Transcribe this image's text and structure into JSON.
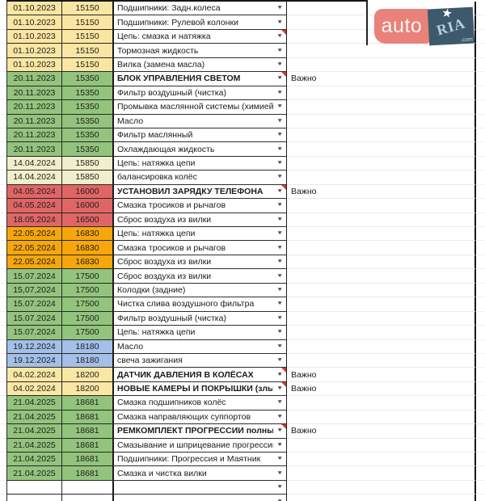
{
  "important_label": "Важно",
  "icons": {
    "dropdown_arrow": "▼",
    "star": "★"
  },
  "logo": {
    "auto_text": "auto",
    "ria_text": "RIA",
    "com_text": ".com",
    "auto_bg": "#e8827a",
    "ria_bg": "#3d5a6c"
  },
  "palette": {
    "yellow": "#fae6a2",
    "green": "#93c47d",
    "cream": "#f1efcb",
    "red": "#e06666",
    "orange": "#f7a70c",
    "blue": "#a4bfe8"
  },
  "empty_rows": 2,
  "rows": [
    {
      "date": "01.10.2023",
      "odometer": "15150",
      "desc": "Подшипники: Задн.колеса",
      "color": "#fae6a2",
      "bold": false,
      "comment": false,
      "important": false
    },
    {
      "date": "01.10.2023",
      "odometer": "15150",
      "desc": "Подшипники: Рулевой колонки",
      "color": "#fae6a2",
      "bold": false,
      "comment": false,
      "important": false
    },
    {
      "date": "01.10.2023",
      "odometer": "15150",
      "desc": "Цепь: смазка и натяжка",
      "color": "#fae6a2",
      "bold": false,
      "comment": true,
      "important": false
    },
    {
      "date": "01.10.2023",
      "odometer": "15150",
      "desc": "Тормозная жидкость",
      "color": "#fae6a2",
      "bold": false,
      "comment": false,
      "important": false
    },
    {
      "date": "01.10.2023",
      "odometer": "15150",
      "desc": "Вилка (замена масла)",
      "color": "#fae6a2",
      "bold": false,
      "comment": false,
      "important": false
    },
    {
      "date": "20.11.2023",
      "odometer": "15350",
      "desc": "БЛОК УПРАВЛЕНИЯ СВЕТОМ",
      "color": "#93c47d",
      "bold": true,
      "comment": true,
      "important": true
    },
    {
      "date": "20.11.2023",
      "odometer": "15350",
      "desc": "Фильтр воздушный (чистка)",
      "color": "#93c47d",
      "bold": false,
      "comment": false,
      "important": false
    },
    {
      "date": "20.11.2023",
      "odometer": "15350",
      "desc": "Промывка маслянной системы (химией)",
      "color": "#93c47d",
      "bold": false,
      "comment": false,
      "important": false
    },
    {
      "date": "20.11.2023",
      "odometer": "15350",
      "desc": "Масло",
      "color": "#93c47d",
      "bold": false,
      "comment": false,
      "important": false
    },
    {
      "date": "20.11.2023",
      "odometer": "15350",
      "desc": "Фильтр маслянный",
      "color": "#93c47d",
      "bold": false,
      "comment": false,
      "important": false
    },
    {
      "date": "20.11.2023",
      "odometer": "15350",
      "desc": "Охлаждающая жидкость",
      "color": "#93c47d",
      "bold": false,
      "comment": false,
      "important": false
    },
    {
      "date": "14.04.2024",
      "odometer": "15850",
      "desc": "Цепь: натяжка цепи",
      "color": "#f1efcb",
      "bold": false,
      "comment": false,
      "important": false
    },
    {
      "date": "14.04.2024",
      "odometer": "15850",
      "desc": "балансировка колёс",
      "color": "#f1efcb",
      "bold": false,
      "comment": false,
      "important": false
    },
    {
      "date": "04.05.2024",
      "odometer": "16000",
      "desc": "УСТАНОВИЛ ЗАРЯДКУ ТЕЛЕФОНА",
      "color": "#e06666",
      "bold": true,
      "comment": true,
      "important": true
    },
    {
      "date": "04.05.2024",
      "odometer": "16000",
      "desc": "Смазка тросиков и рычагов",
      "color": "#e06666",
      "bold": false,
      "comment": false,
      "important": false
    },
    {
      "date": "18.05.2024",
      "odometer": "16500",
      "desc": "Сброс воздуха из вилки",
      "color": "#e06666",
      "bold": false,
      "comment": false,
      "important": false
    },
    {
      "date": "22.05.2024",
      "odometer": "16830",
      "desc": "Цепь: натяжка цепи",
      "color": "#f7a70c",
      "bold": false,
      "comment": false,
      "important": false
    },
    {
      "date": "22.05.2024",
      "odometer": "16830",
      "desc": "Смазка тросиков и рычагов",
      "color": "#f7a70c",
      "bold": false,
      "comment": false,
      "important": false
    },
    {
      "date": "22.05.2024",
      "odometer": "16830",
      "desc": "Сброс воздуха из вилки",
      "color": "#f7a70c",
      "bold": false,
      "comment": false,
      "important": false
    },
    {
      "date": "15.07.2024",
      "odometer": "17500",
      "desc": "Сброс воздуха из вилки",
      "color": "#93c47d",
      "bold": false,
      "comment": false,
      "important": false
    },
    {
      "date": "15,07,2024",
      "odometer": "17500",
      "desc": "Колодки (задние)",
      "color": "#93c47d",
      "bold": false,
      "comment": false,
      "important": false
    },
    {
      "date": "15.07.2024",
      "odometer": "17500",
      "desc": "Чистка слива воздушного фильтра",
      "color": "#93c47d",
      "bold": false,
      "comment": false,
      "important": false
    },
    {
      "date": "15.07.2024",
      "odometer": "17500",
      "desc": "Фильтр воздушный (чистка)",
      "color": "#93c47d",
      "bold": false,
      "comment": false,
      "important": false
    },
    {
      "date": "15.07.2024",
      "odometer": "17500",
      "desc": "Цепь: натяжка цепи",
      "color": "#93c47d",
      "bold": false,
      "comment": false,
      "important": false
    },
    {
      "date": "19.12.2024",
      "odometer": "18180",
      "desc": "Масло",
      "color": "#a4bfe8",
      "bold": false,
      "comment": false,
      "important": false
    },
    {
      "date": "19.12.2024",
      "odometer": "18180",
      "desc": "свеча зажигания",
      "color": "#a4bfe8",
      "bold": false,
      "comment": false,
      "important": false
    },
    {
      "date": "04.02.2024",
      "odometer": "18200",
      "desc": "ДАТЧИК ДАВЛЕНИЯ В КОЛЁСАХ",
      "color": "#fbe7a4",
      "bold": true,
      "comment": true,
      "important": true
    },
    {
      "date": "04.02.2024",
      "odometer": "18200",
      "desc": "НОВЫЕ КАМЕРЫ И ПОКРЫШКИ (злые)",
      "color": "#fbe7a4",
      "bold": true,
      "comment": true,
      "important": true
    },
    {
      "date": "21.04.2025",
      "odometer": "18681",
      "desc": "Смазка подшипников колёс",
      "color": "#93c47d",
      "bold": false,
      "comment": false,
      "important": false
    },
    {
      "date": "21.04.2025",
      "odometer": "18681",
      "desc": "Смазка направляющих суппортов",
      "color": "#93c47d",
      "bold": false,
      "comment": false,
      "important": false
    },
    {
      "date": "21.04.2025",
      "odometer": "18681",
      "desc": "РЕМКОМПЛЕКТ ПРОГРЕССИИ полный",
      "color": "#93c47d",
      "bold": true,
      "comment": true,
      "important": true
    },
    {
      "date": "21.04.2025",
      "odometer": "18681",
      "desc": "Смазывание и шприцевание прогрессии",
      "color": "#93c47d",
      "bold": false,
      "comment": false,
      "important": false
    },
    {
      "date": "21.04.2025",
      "odometer": "18681",
      "desc": "Подшипники: Прогрессия и Маятник",
      "color": "#93c47d",
      "bold": false,
      "comment": false,
      "important": false
    },
    {
      "date": "21.04.2025",
      "odometer": "18681",
      "desc": "Смазка и чистка вилки",
      "color": "#93c47d",
      "bold": false,
      "comment": false,
      "important": false
    }
  ]
}
